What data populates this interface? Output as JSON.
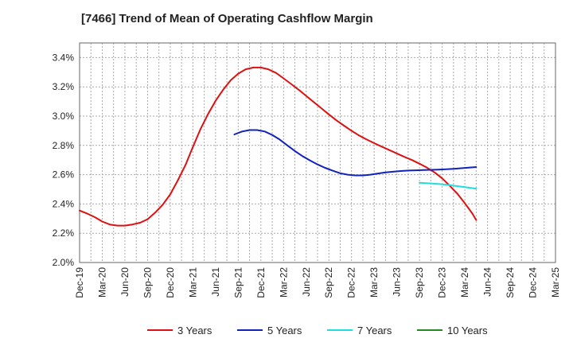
{
  "chart_data": {
    "type": "line",
    "title": "[7466]  Trend of Mean of Operating Cashflow Margin",
    "xlabel": "",
    "ylabel": "",
    "ylim": [
      2.0,
      3.5
    ],
    "y_ticks": [
      "2.0%",
      "2.2%",
      "2.4%",
      "2.6%",
      "2.8%",
      "3.0%",
      "3.2%",
      "3.4%"
    ],
    "y_tick_values": [
      2.0,
      2.2,
      2.4,
      2.6,
      2.8,
      3.0,
      3.2,
      3.4
    ],
    "grid": true,
    "legend_position": "bottom",
    "categories": [
      "Dec-19",
      "Mar-20",
      "Jun-20",
      "Sep-20",
      "Dec-20",
      "Mar-21",
      "Jun-21",
      "Sep-21",
      "Dec-21",
      "Mar-22",
      "Jun-22",
      "Sep-22",
      "Dec-22",
      "Mar-23",
      "Jun-23",
      "Sep-23",
      "Dec-23",
      "Mar-24",
      "Jun-24",
      "Sep-24",
      "Dec-24",
      "Mar-25"
    ],
    "series": [
      {
        "name": "3 Years",
        "color": "#dd1111",
        "points": [
          [
            0,
            2.355
          ],
          [
            0.33,
            2.335
          ],
          [
            0.67,
            2.31
          ],
          [
            1,
            2.28
          ],
          [
            1.33,
            2.26
          ],
          [
            1.67,
            2.252
          ],
          [
            2,
            2.252
          ],
          [
            2.33,
            2.26
          ],
          [
            2.67,
            2.272
          ],
          [
            3,
            2.295
          ],
          [
            3.33,
            2.34
          ],
          [
            3.67,
            2.395
          ],
          [
            4,
            2.465
          ],
          [
            4.33,
            2.56
          ],
          [
            4.67,
            2.665
          ],
          [
            5,
            2.79
          ],
          [
            5.33,
            2.91
          ],
          [
            5.67,
            3.015
          ],
          [
            6,
            3.105
          ],
          [
            6.33,
            3.18
          ],
          [
            6.67,
            3.245
          ],
          [
            7,
            3.29
          ],
          [
            7.33,
            3.32
          ],
          [
            7.67,
            3.332
          ],
          [
            8,
            3.332
          ],
          [
            8.33,
            3.32
          ],
          [
            8.67,
            3.295
          ],
          [
            9,
            3.258
          ],
          [
            9.33,
            3.22
          ],
          [
            9.67,
            3.18
          ],
          [
            10,
            3.138
          ],
          [
            10.33,
            3.096
          ],
          [
            10.67,
            3.054
          ],
          [
            11,
            3.012
          ],
          [
            11.33,
            2.972
          ],
          [
            11.67,
            2.935
          ],
          [
            12,
            2.9
          ],
          [
            12.33,
            2.868
          ],
          [
            12.67,
            2.84
          ],
          [
            13,
            2.815
          ],
          [
            13.33,
            2.792
          ],
          [
            13.67,
            2.768
          ],
          [
            14,
            2.745
          ],
          [
            14.33,
            2.722
          ],
          [
            14.67,
            2.7
          ],
          [
            15,
            2.675
          ],
          [
            15.33,
            2.648
          ],
          [
            15.67,
            2.615
          ],
          [
            16,
            2.575
          ],
          [
            16.33,
            2.525
          ],
          [
            16.67,
            2.47
          ],
          [
            17,
            2.405
          ],
          [
            17.33,
            2.335
          ],
          [
            17.5,
            2.29
          ]
        ]
      },
      {
        "name": "5 Years",
        "color": "#1122bb",
        "points": [
          [
            6.83,
            2.875
          ],
          [
            7.17,
            2.895
          ],
          [
            7.5,
            2.905
          ],
          [
            7.83,
            2.905
          ],
          [
            8.17,
            2.895
          ],
          [
            8.5,
            2.872
          ],
          [
            8.83,
            2.84
          ],
          [
            9.17,
            2.8
          ],
          [
            9.5,
            2.762
          ],
          [
            9.83,
            2.727
          ],
          [
            10.17,
            2.697
          ],
          [
            10.5,
            2.67
          ],
          [
            10.83,
            2.647
          ],
          [
            11.17,
            2.627
          ],
          [
            11.5,
            2.61
          ],
          [
            11.83,
            2.6
          ],
          [
            12.17,
            2.595
          ],
          [
            12.5,
            2.595
          ],
          [
            12.83,
            2.6
          ],
          [
            13.17,
            2.608
          ],
          [
            13.5,
            2.615
          ],
          [
            13.83,
            2.62
          ],
          [
            14.17,
            2.625
          ],
          [
            14.5,
            2.628
          ],
          [
            14.83,
            2.63
          ],
          [
            15.17,
            2.632
          ],
          [
            15.5,
            2.633
          ],
          [
            15.83,
            2.635
          ],
          [
            16.17,
            2.637
          ],
          [
            16.5,
            2.64
          ],
          [
            16.83,
            2.644
          ],
          [
            17.17,
            2.648
          ],
          [
            17.5,
            2.652
          ]
        ]
      },
      {
        "name": "7 Years",
        "color": "#22dddd",
        "points": [
          [
            15,
            2.545
          ],
          [
            15.5,
            2.54
          ],
          [
            16,
            2.535
          ],
          [
            16.5,
            2.525
          ],
          [
            17,
            2.515
          ],
          [
            17.5,
            2.505
          ]
        ]
      },
      {
        "name": "10 Years",
        "color": "#228822",
        "points": []
      }
    ]
  }
}
